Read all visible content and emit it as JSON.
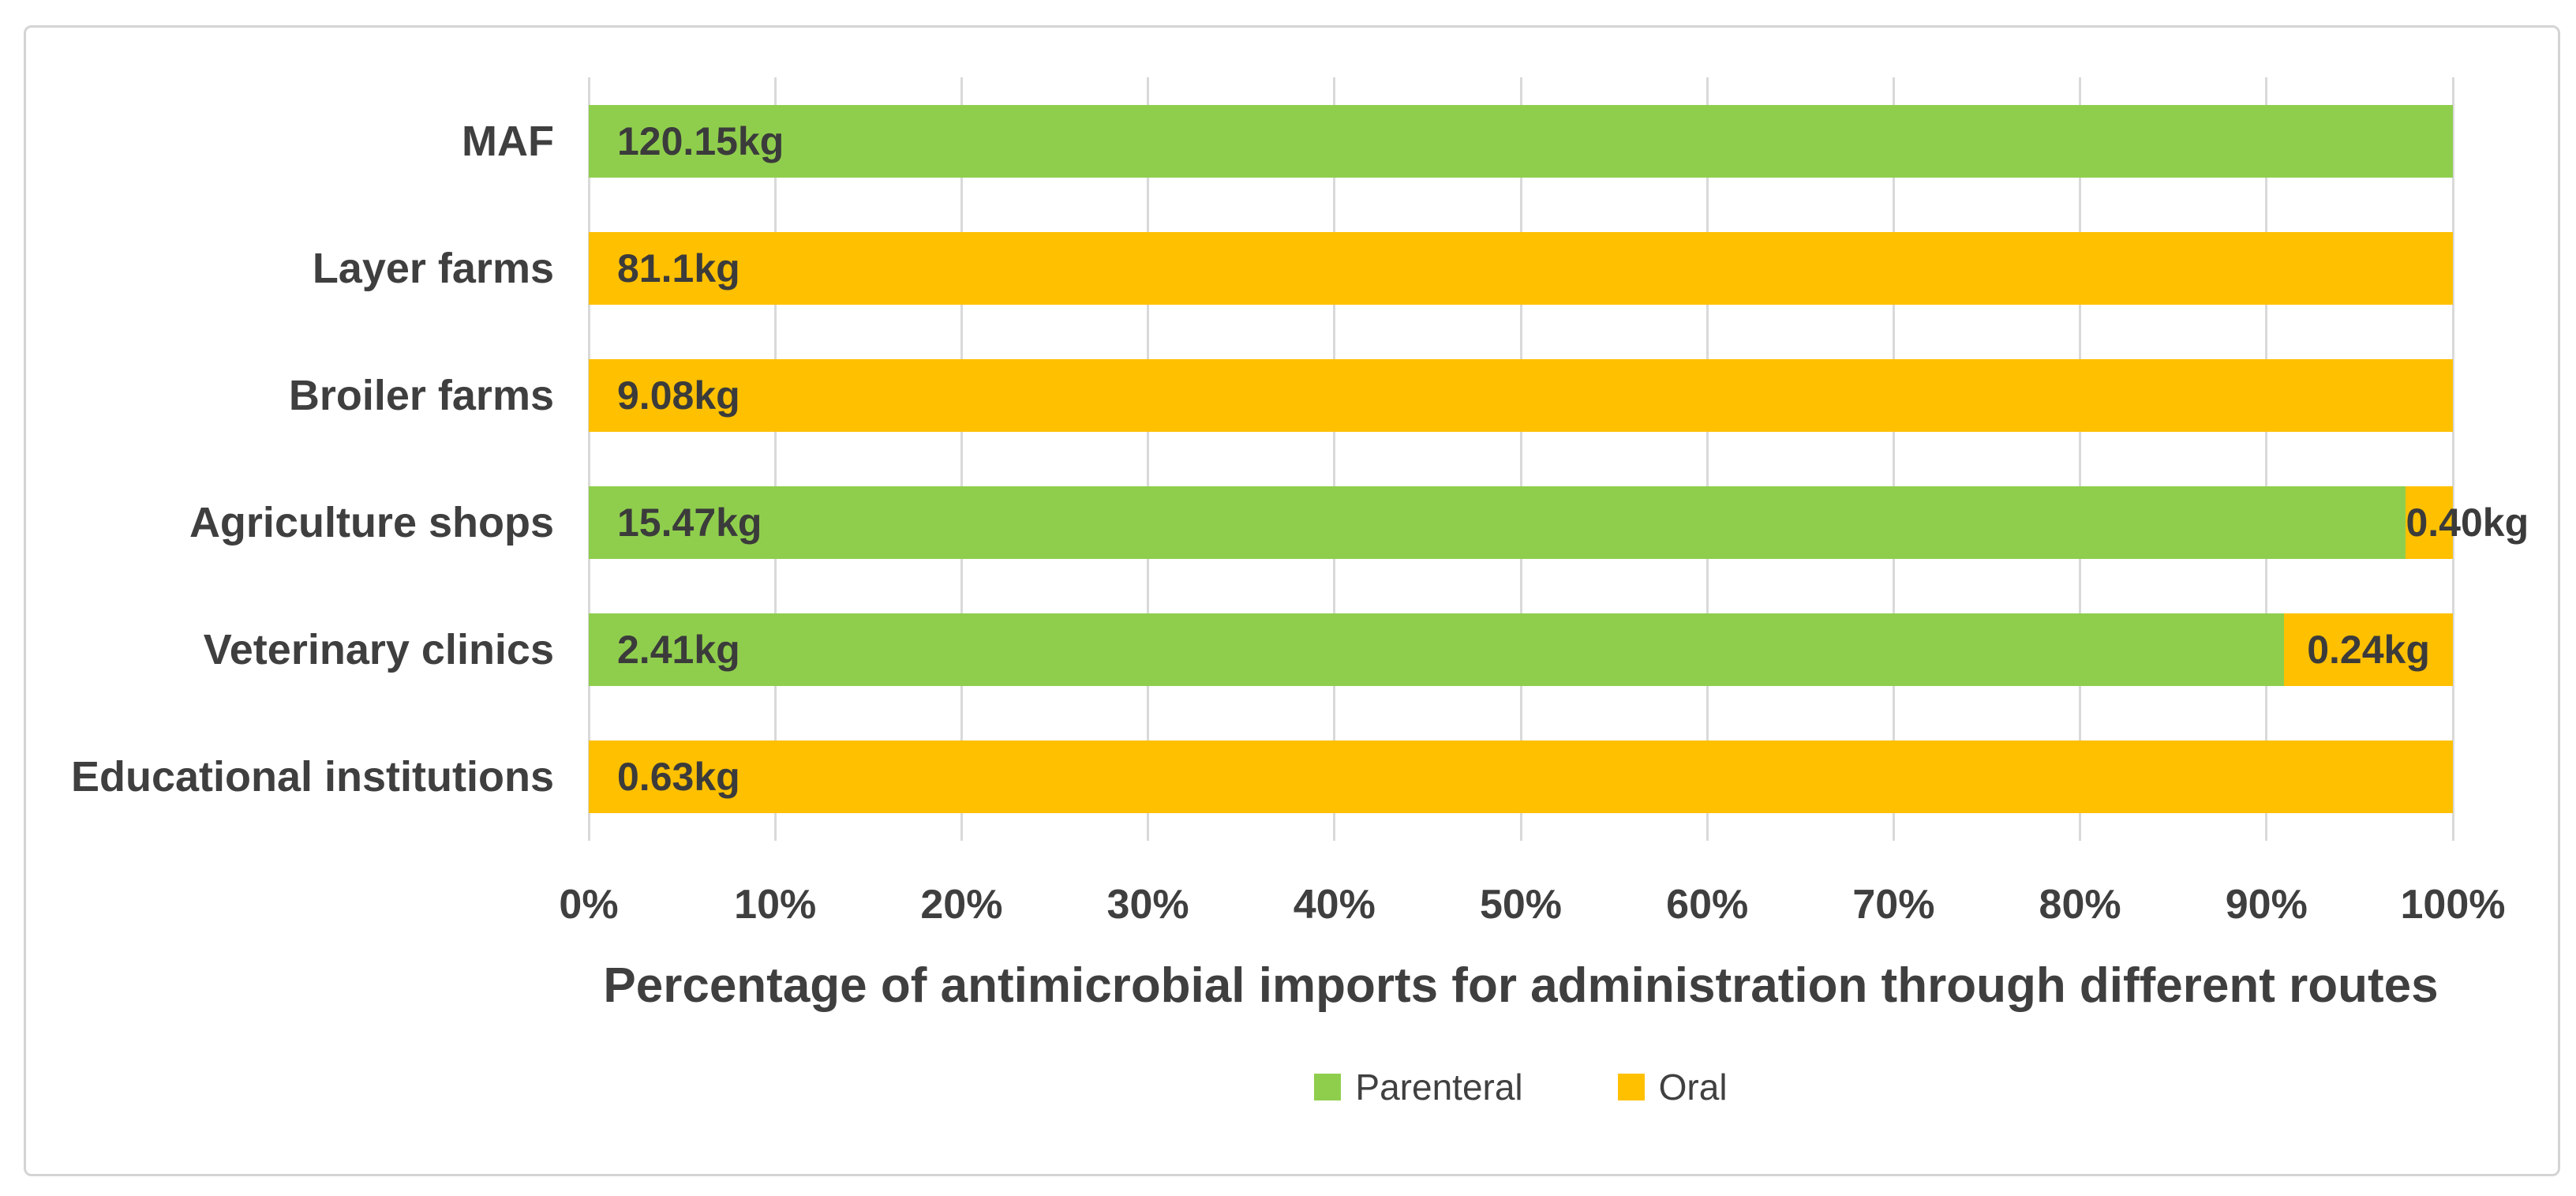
{
  "chart_data": {
    "type": "bar",
    "orientation": "horizontal",
    "stacked": true,
    "stacked_as": "percent_of_row_total",
    "value_unit": "kg",
    "categories": [
      "MAF",
      "Layer farms",
      "Broiler farms",
      "Agriculture shops",
      "Veterinary clinics",
      "Educational institutions"
    ],
    "series": [
      {
        "name": "Parenteral",
        "color": "#8FCE4D",
        "values": [
          120.15,
          0,
          0,
          15.47,
          2.41,
          0
        ]
      },
      {
        "name": "Oral",
        "color": "#FFC000",
        "values": [
          0,
          81.1,
          9.08,
          0.4,
          0.24,
          0.63
        ]
      }
    ],
    "data_labels": [
      [
        "120.15kg",
        null
      ],
      [
        null,
        "81.1kg"
      ],
      [
        null,
        "9.08kg"
      ],
      [
        "15.47kg",
        "0.40kg"
      ],
      [
        "2.41kg",
        "0.24kg"
      ],
      [
        null,
        "0.63kg"
      ]
    ],
    "x_ticks": [
      "0%",
      "10%",
      "20%",
      "30%",
      "40%",
      "50%",
      "60%",
      "70%",
      "80%",
      "90%",
      "100%"
    ],
    "xlim": [
      0,
      100
    ],
    "grid": true,
    "xlabel": "Percentage of antimicrobial imports for administration through different routes",
    "ylabel": "",
    "title": "",
    "legend": {
      "position": "bottom",
      "entries": [
        "Parenteral",
        "Oral"
      ]
    },
    "colors": {
      "parenteral_green": "#8FCE4D",
      "oral_orange": "#FFC000",
      "text": "#3F3F3F",
      "gridline": "#D9D9D9",
      "border": "#D4D4D4"
    }
  }
}
